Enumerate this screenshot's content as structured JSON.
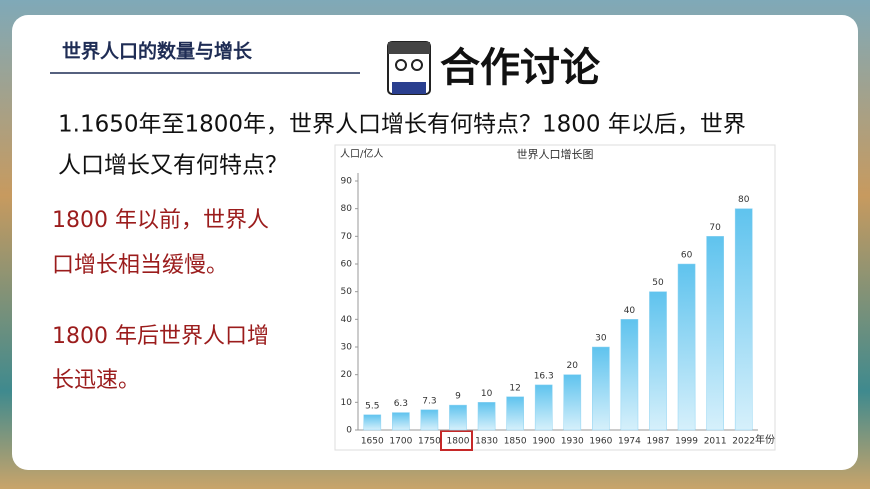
{
  "header": {
    "title": "世界人口的数量与增长",
    "badge": "合作讨论"
  },
  "question": [
    "1.1650年至1800年，世界人口增长有何特点？1800 年以后，世界",
    "人口增长又有何特点？"
  ],
  "answers": [
    [
      "1800 年以前，世界人",
      "口增长相当缓慢。"
    ],
    [
      "1800 年后世界人口增",
      "长迅速。"
    ]
  ],
  "chart_data": {
    "type": "bar",
    "title": "世界人口增长图",
    "y_label": "人口/亿人",
    "x_label": "年份",
    "categories": [
      "1650",
      "1700",
      "1750",
      "1800",
      "1830",
      "1850",
      "1900",
      "1930",
      "1960",
      "1974",
      "1987",
      "1999",
      "2011",
      "2022"
    ],
    "values": [
      5.5,
      6.3,
      7.3,
      9,
      10,
      12,
      16.3,
      20,
      30,
      40,
      50,
      60,
      70,
      80
    ],
    "ylim": [
      0,
      90
    ],
    "yticks": [
      0,
      10,
      20,
      30,
      40,
      50,
      60,
      70,
      80,
      90
    ],
    "color": "#8fd3f2"
  }
}
